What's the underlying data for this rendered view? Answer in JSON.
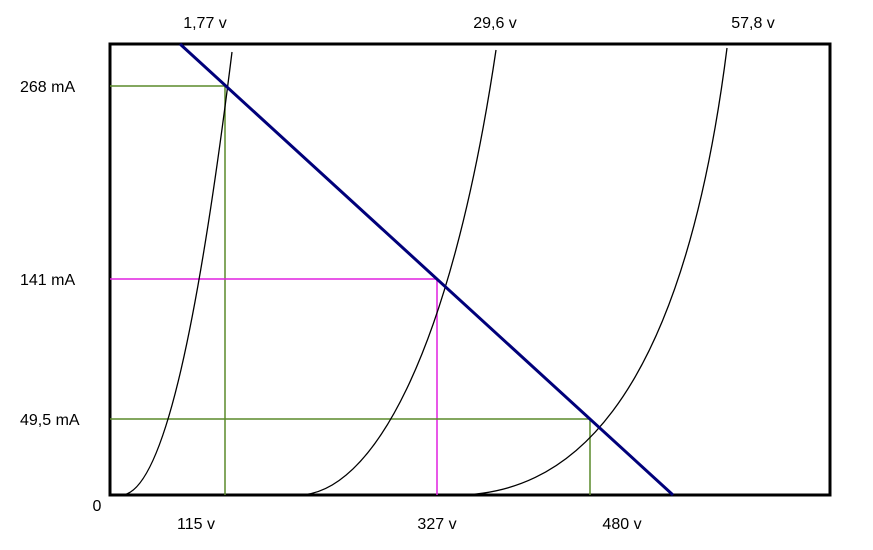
{
  "curve_labels": [
    "1,77 v",
    "29,6 v",
    "57,8 v"
  ],
  "current_labels": [
    "268 mA",
    "141 mA",
    "49,5 mA"
  ],
  "origin": "0",
  "voltage_labels": [
    "115 v",
    "327 v",
    "480 v"
  ]
}
